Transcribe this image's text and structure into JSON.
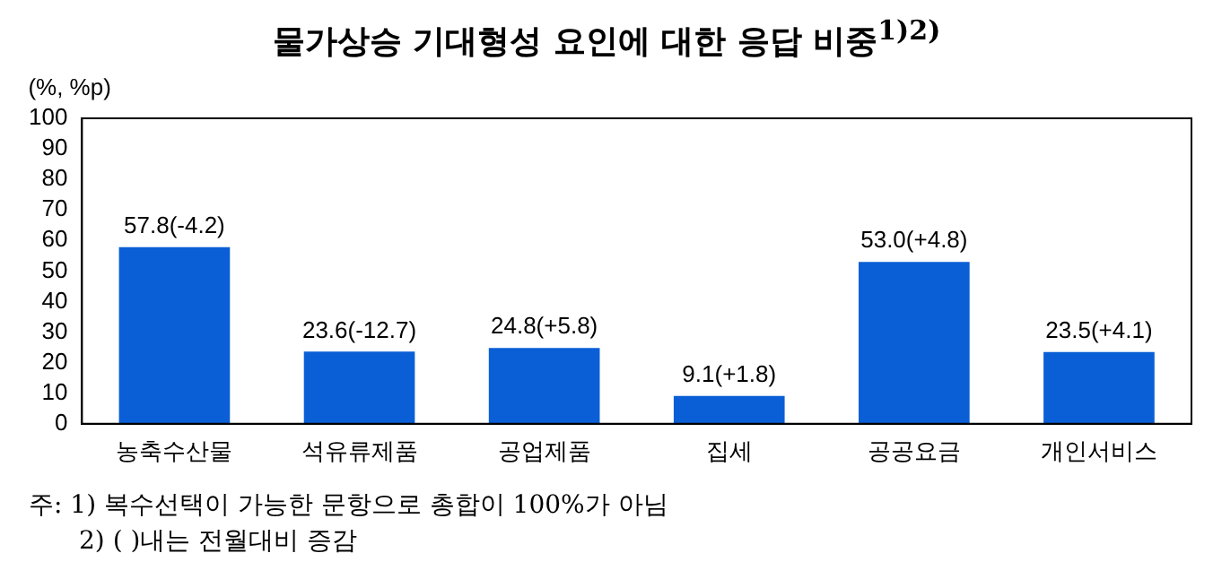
{
  "chart_data": {
    "type": "bar",
    "title": "물가상승 기대형성 요인에 대한 응답 비중$^{1)2)}$",
    "ylabel": "(%, %p)",
    "categories": [
      "농축수산물",
      "석유류제품",
      "공업제품",
      "집세",
      "공공요금",
      "개인서비스"
    ],
    "values": [
      57.8,
      23.6,
      24.8,
      9.1,
      53.0,
      23.5
    ],
    "value_labels": [
      "57.8(-4.2)",
      "23.6(-12.7)",
      "24.8(+5.8)",
      "9.1(+1.8)",
      "53.0(+4.8)",
      "23.5(+4.1)"
    ],
    "color": "#0a5fd6",
    "ylim": [
      0,
      100
    ],
    "yticks": [
      0,
      10,
      20,
      30,
      40,
      50,
      60,
      70,
      80,
      90,
      100
    ],
    "grid": false,
    "legend": false,
    "annotations": [
      "주: 1) 복수선택이 가능한 문항으로 총합이 100%가 아님",
      "2) ( )내는 전월대비 증감"
    ]
  }
}
